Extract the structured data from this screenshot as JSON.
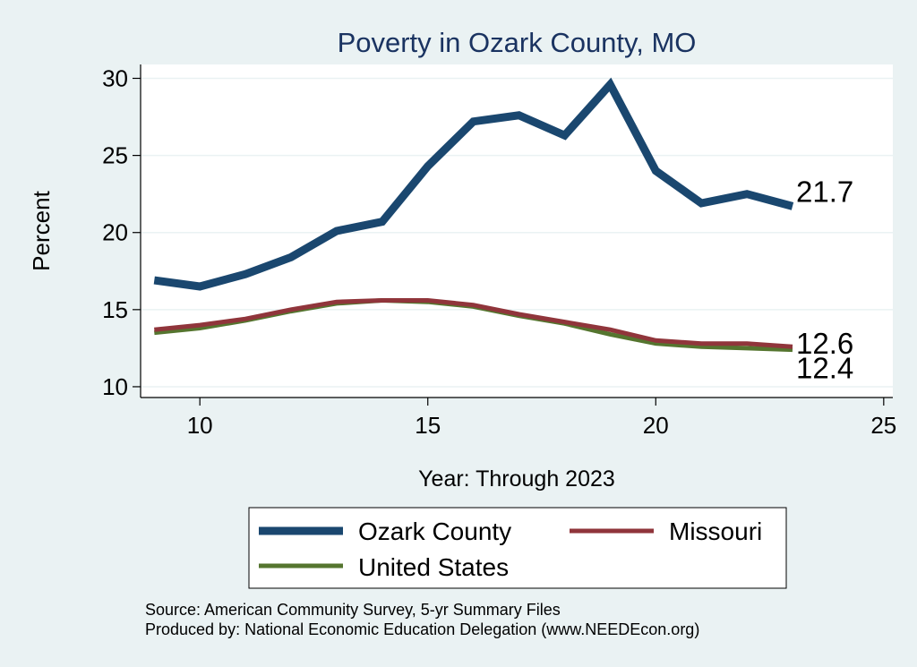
{
  "chart_data": {
    "type": "line",
    "title": "Poverty in Ozark County, MO",
    "xlabel": "Year: Through 2023",
    "ylabel": "Percent",
    "xlim": [
      8.7,
      25.2
    ],
    "ylim": [
      9.3,
      30.9
    ],
    "xticks": [
      10,
      15,
      20,
      25
    ],
    "yticks": [
      10,
      15,
      20,
      25,
      30
    ],
    "grid": true,
    "legend_position": "bottom",
    "series": [
      {
        "name": "Ozark County",
        "color": "#1a476f",
        "width": "thick",
        "x": [
          9,
          10,
          11,
          12,
          13,
          14,
          15,
          16,
          17,
          18,
          19,
          20,
          21,
          22,
          23
        ],
        "values": [
          16.9,
          16.5,
          17.3,
          18.4,
          20.1,
          20.7,
          24.3,
          27.2,
          27.6,
          26.3,
          29.6,
          24.0,
          21.9,
          22.5,
          21.7
        ],
        "end_label": "21.7"
      },
      {
        "name": "Missouri",
        "color": "#90353b",
        "width": "thin",
        "x": [
          9,
          10,
          11,
          12,
          13,
          14,
          15,
          16,
          17,
          18,
          19,
          20,
          21,
          22,
          23
        ],
        "values": [
          13.7,
          14.0,
          14.4,
          15.0,
          15.5,
          15.6,
          15.6,
          15.3,
          14.7,
          14.2,
          13.7,
          13.0,
          12.8,
          12.8,
          12.6
        ],
        "end_label": "12.6"
      },
      {
        "name": "United States",
        "color": "#55752f",
        "width": "thin",
        "x": [
          9,
          10,
          11,
          12,
          13,
          14,
          15,
          16,
          17,
          18,
          19,
          20,
          21,
          22,
          23
        ],
        "values": [
          13.5,
          13.8,
          14.3,
          14.9,
          15.4,
          15.6,
          15.5,
          15.2,
          14.6,
          14.1,
          13.4,
          12.8,
          12.6,
          12.5,
          12.4
        ],
        "end_label": "12.4"
      }
    ],
    "legend": [
      {
        "name": "Ozark County",
        "color": "#1a476f"
      },
      {
        "name": "Missouri",
        "color": "#90353b"
      },
      {
        "name": "United States",
        "color": "#55752f"
      }
    ],
    "notes": [
      "Source: American Community Survey, 5-yr Summary Files",
      "Produced by: National Economic Education Delegation (www.NEEDEcon.org)"
    ]
  }
}
